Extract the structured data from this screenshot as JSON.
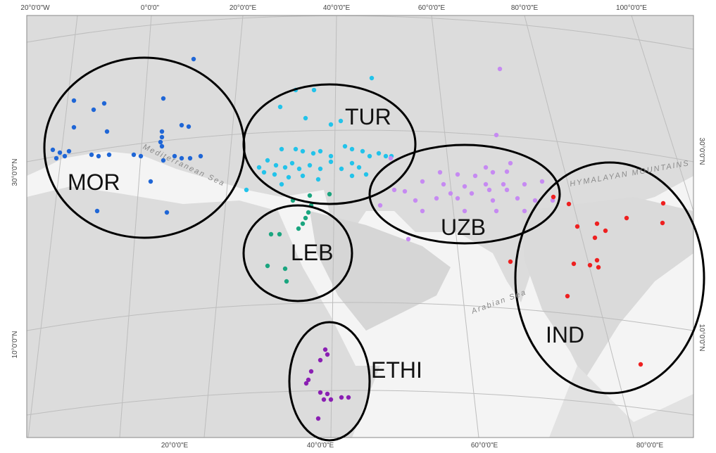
{
  "map": {
    "top_labels": [
      "20°0'0\"W",
      "0°0'0\"",
      "20°0'0\"E",
      "40°0'0\"E",
      "60°0'0\"E",
      "80°0'0\"E",
      "100°0'0\"E"
    ],
    "bottom_labels": [
      "20°0'0\"E",
      "40°0'0\"E",
      "60°0'0\"E",
      "80°0'0\"E"
    ],
    "left_labels": [
      "30°0'0\"N",
      "10°0'0\"N"
    ],
    "right_labels": [
      "30°0'0\"N",
      "10°0'0\"N"
    ],
    "features": [
      "Mediterranean Sea",
      "Arabian Sea",
      "HYMALAYAN MOUNTAINS"
    ],
    "clusters": [
      "MOR",
      "TUR",
      "UZB",
      "LEB",
      "ETHI",
      "IND"
    ]
  }
}
